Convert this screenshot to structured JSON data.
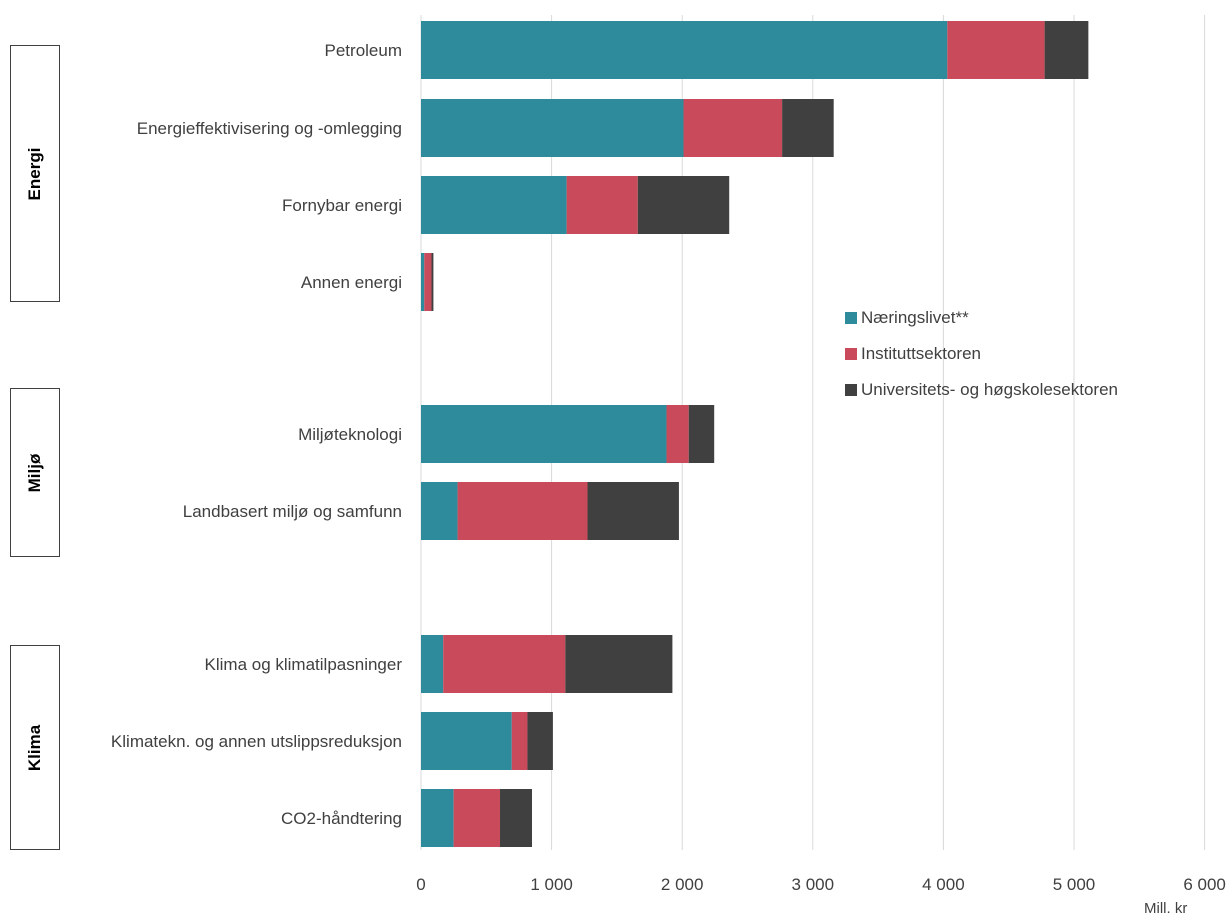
{
  "chart_data": {
    "type": "bar",
    "orientation": "horizontal",
    "stacked": true,
    "unit_label": "Mill. kr",
    "xlim": [
      0,
      6000
    ],
    "x_ticks": [
      "0",
      "1 000",
      "2 000",
      "3 000",
      "4 000",
      "5 000",
      "6 000"
    ],
    "grid": "vertical",
    "legend_placement": "right-middle",
    "groups": [
      {
        "name": "Energi",
        "categories": [
          "Petroleum",
          "Energieffektivisering og -omlegging",
          "Fornybar energi",
          "Annen energi"
        ]
      },
      {
        "name": "Miljø",
        "categories": [
          "Miljøteknologi",
          "Landbasert miljø og samfunn"
        ]
      },
      {
        "name": "Klima",
        "categories": [
          "Klima og klimatilpasninger",
          "Klimatekn. og annen utslippsreduksjon",
          "CO2-håndtering"
        ]
      }
    ],
    "categories": [
      "Petroleum",
      "Energieffektivisering og -omlegging",
      "Fornybar energi",
      "Annen energi",
      "Miljøteknologi",
      "Landbasert miljø og samfunn",
      "Klima og klimatilpasninger",
      "Klimatekn. og annen utslippsreduksjon",
      "CO2-håndtering"
    ],
    "series": [
      {
        "name": "Næringslivet**",
        "color": "#2E8B9C",
        "values": [
          4030,
          2010,
          1115,
          25,
          1880,
          280,
          170,
          695,
          250
        ]
      },
      {
        "name": "Instituttsektoren",
        "color": "#C94A5A",
        "values": [
          745,
          755,
          545,
          55,
          170,
          995,
          935,
          120,
          355
        ]
      },
      {
        "name": "Universitets- og høgskolesektoren",
        "color": "#404040",
        "values": [
          335,
          395,
          700,
          15,
          195,
          700,
          820,
          195,
          245
        ]
      }
    ]
  }
}
